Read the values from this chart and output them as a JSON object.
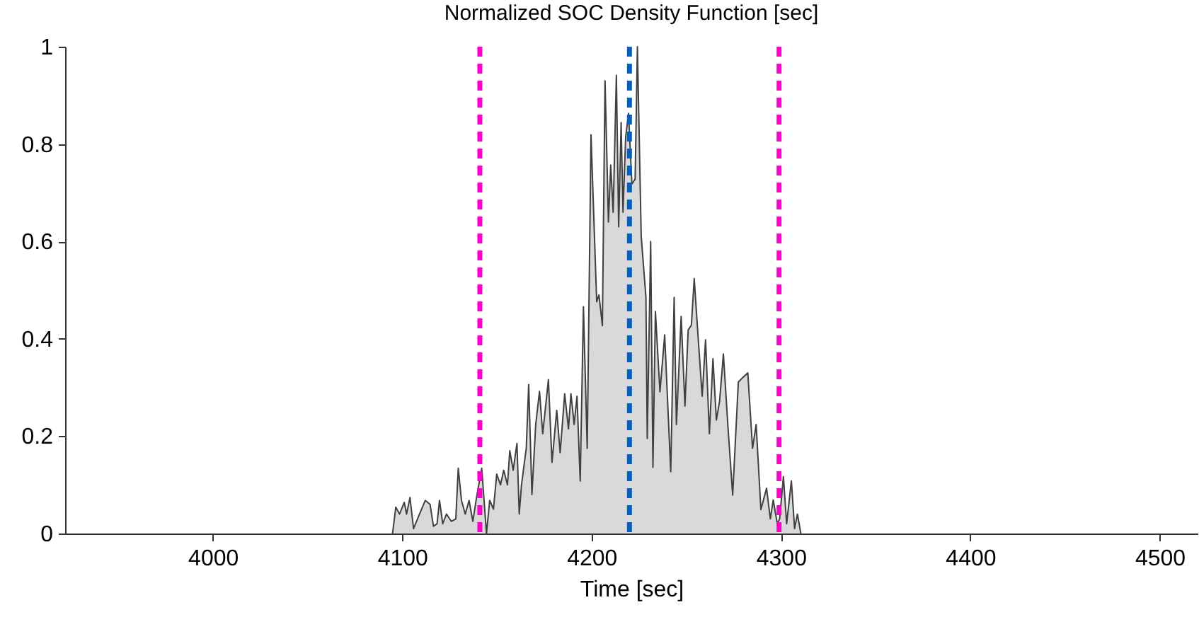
{
  "chart_data": {
    "type": "area",
    "title": "Normalized SOC Density Function [sec]",
    "xlabel": "Time [sec]",
    "x": [
      4094.9,
      4096.6,
      4098.6,
      4101.1,
      4102.3,
      4104.1,
      4106.0,
      4108.5,
      4112.2,
      4114.7,
      4116.5,
      4118.4,
      4119.7,
      4121.4,
      4123.4,
      4125.9,
      4128.3,
      4129.6,
      4131.3,
      4133.3,
      4135.3,
      4137.3,
      4139.5,
      4142.0,
      4144.5,
      4146.2,
      4148.2,
      4149.9,
      4151.9,
      4153.6,
      4155.6,
      4156.8,
      4158.6,
      4160.6,
      4161.8,
      4163.0,
      4165.5,
      4166.8,
      4168.5,
      4170.5,
      4172.5,
      4174.2,
      4177.2,
      4179.1,
      4181.6,
      4183.4,
      4185.8,
      4187.8,
      4189.1,
      4190.8,
      4192.3,
      4194.0,
      4195.7,
      4197.7,
      4199.7,
      4202.7,
      4203.9,
      4205.7,
      4207.1,
      4208.9,
      4210.1,
      4211.4,
      4213.1,
      4214.3,
      4215.6,
      4216.6,
      4218.0,
      4219.5,
      4221.3,
      4223.0,
      4224.2,
      4226.2,
      4228.7,
      4229.4,
      4231.2,
      4232.4,
      4233.7,
      4236.1,
      4238.6,
      4241.8,
      4243.6,
      4244.8,
      4247.3,
      4249.3,
      4251.0,
      4252.7,
      4254.2,
      4256.0,
      4258.4,
      4260.2,
      4262.2,
      4264.1,
      4265.9,
      4267.6,
      4269.6,
      4272.1,
      4274.5,
      4277.5,
      4280.0,
      4282.5,
      4285.0,
      4286.9,
      4289.4,
      4292.4,
      4294.4,
      4295.9,
      4298.1,
      4299.3,
      4301.3,
      4303.0,
      4305.5,
      4307.2,
      4308.7,
      4310.5
    ],
    "series": [
      {
        "color": "#404040",
        "values": [
          0,
          0.054,
          0.04,
          0.064,
          0.04,
          0.074,
          0.01,
          0.034,
          0.068,
          0.06,
          0.015,
          0.02,
          0.068,
          0.02,
          0.04,
          0.025,
          0.03,
          0.134,
          0.068,
          0.04,
          0.068,
          0.025,
          0.08,
          0.134,
          0,
          0.068,
          0.05,
          0.122,
          0.1,
          0.13,
          0.1,
          0.17,
          0.13,
          0.185,
          0.04,
          0.1,
          0.175,
          0.306,
          0.08,
          0.224,
          0.292,
          0.205,
          0.316,
          0.146,
          0.253,
          0.166,
          0.287,
          0.215,
          0.287,
          0.224,
          0.282,
          0.108,
          0.466,
          0.175,
          0.819,
          0.476,
          0.49,
          0.427,
          0.93,
          0.64,
          0.757,
          0.66,
          0.941,
          0.63,
          0.844,
          0.66,
          0.815,
          0.863,
          0.718,
          0.728,
          1.0,
          0.611,
          0.485,
          0.195,
          0.6,
          0.136,
          0.456,
          0.291,
          0.408,
          0.127,
          0.485,
          0.224,
          0.446,
          0.262,
          0.418,
          0.428,
          0.524,
          0.418,
          0.282,
          0.398,
          0.205,
          0.359,
          0.233,
          0.272,
          0.369,
          0.214,
          0.079,
          0.311,
          0.321,
          0.33,
          0.175,
          0.224,
          0.049,
          0.093,
          0.03,
          0.069,
          0.02,
          0.03,
          0.117,
          0.02,
          0.108,
          0.01,
          0.04,
          0
        ]
      }
    ],
    "xlim": [
      3922,
      4520
    ],
    "xticks": [
      4000,
      4100,
      4200,
      4300,
      4400,
      4500
    ],
    "ylim": [
      0,
      1
    ],
    "yticks": [
      0,
      0.2,
      0.4,
      0.6,
      0.8,
      1
    ],
    "ref_lines": [
      {
        "axis": "x",
        "value": 4141,
        "color": "#ff00cc",
        "line_style": "dashed"
      },
      {
        "axis": "x",
        "value": 4220,
        "color": "#0a5db5",
        "line_style": "dashed"
      },
      {
        "axis": "x",
        "value": 4299,
        "color": "#ff00cc",
        "line_style": "dashed"
      }
    ]
  }
}
